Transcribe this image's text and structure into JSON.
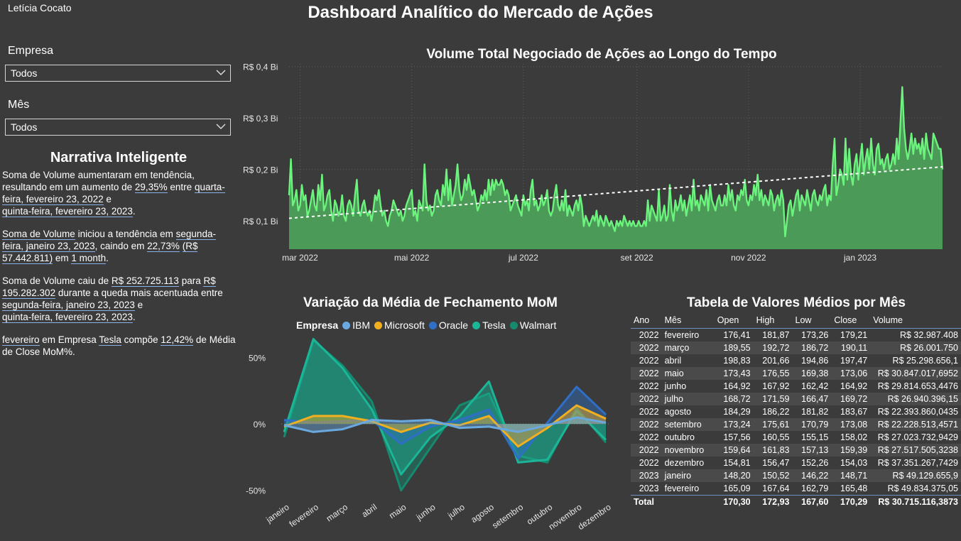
{
  "user": "Letícia Cocato",
  "title": "Dashboard Analítico do Mercado de Ações",
  "filters": {
    "empresa_label": "Empresa",
    "empresa_value": "Todos",
    "mes_label": "Mês",
    "mes_value": "Todos"
  },
  "narrative": {
    "title": "Narrativa Inteligente",
    "p1": {
      "a": "Soma de Volume aumentaram em tendência, resultando em um aumento de ",
      "b": "29,35%",
      "c": " entre ",
      "d": "quarta-feira, fevereiro 23, 2022",
      "e": " e ",
      "f": "quinta-feira, fevereiro 23, 2023",
      "g": "."
    },
    "p2": {
      "a": "Soma de Volume",
      "b": " iniciou a tendência em ",
      "c": "segunda-feira, janeiro 23, 2023",
      "d": ", caindo em ",
      "e": "22,73%",
      "f": " ",
      "g": "(R$ 57.442.811)",
      "h": " em ",
      "i": "1 month",
      "j": "."
    },
    "p3": {
      "a": "Soma de Volume caiu de ",
      "b": "R$ 252.725.113",
      "c": " para ",
      "d": "R$ 195.282.302",
      "e": " durante a queda mais acentuada entre ",
      "f": "segunda-feira, janeiro 23, 2023",
      "g": " e ",
      "h": "quinta-feira, fevereiro 23, 2023",
      "i": "."
    },
    "p4": {
      "a": "fevereiro",
      "b": " em Empresa ",
      "c": "Tesla",
      "d": " compõe ",
      "e": "12,42%",
      "f": " de Média de Close MoM%."
    }
  },
  "colors": {
    "background": "#3b3b3b",
    "volume_line": "#6cf37e",
    "volume_area": "#4c9a57",
    "trend": "#ffffff",
    "IBM": "#6aa9e0",
    "Microsoft": "#f2b01e",
    "Oracle": "#2f6fc6",
    "Tesla": "#1bb597",
    "Walmart": "#158a6e"
  },
  "chart_data": [
    {
      "type": "area",
      "title": "Volume Total Negociado de Ações ao Longo do Tempo",
      "x_range": [
        "2022-02-23",
        "2023-02-23"
      ],
      "x_ticks": [
        "mar 2022",
        "mai 2022",
        "jul 2022",
        "set 2022",
        "nov 2022",
        "jan 2023"
      ],
      "y_ticks": [
        "R$ 0,1 Bi",
        "R$ 0,2 Bi",
        "R$ 0,3 Bi",
        "R$ 0,4 Bi"
      ],
      "ylim": [
        0.045,
        0.405
      ],
      "grid": true,
      "trendline": {
        "start": 0.105,
        "end": 0.205
      },
      "series_unit": "R$ Bi",
      "values": [
        0.15,
        0.22,
        0.13,
        0.14,
        0.16,
        0.12,
        0.13,
        0.17,
        0.14,
        0.15,
        0.11,
        0.12,
        0.14,
        0.16,
        0.13,
        0.12,
        0.17,
        0.14,
        0.19,
        0.12,
        0.13,
        0.15,
        0.16,
        0.12,
        0.1,
        0.14,
        0.13,
        0.11,
        0.12,
        0.15,
        0.11,
        0.1,
        0.13,
        0.14,
        0.13,
        0.11,
        0.15,
        0.18,
        0.12,
        0.11,
        0.13,
        0.14,
        0.12,
        0.11,
        0.12,
        0.1,
        0.12,
        0.15,
        0.14,
        0.16,
        0.13,
        0.11,
        0.12,
        0.1,
        0.09,
        0.11,
        0.12,
        0.14,
        0.13,
        0.12,
        0.11,
        0.12,
        0.1,
        0.11,
        0.13,
        0.14,
        0.15,
        0.16,
        0.11,
        0.12,
        0.1,
        0.14,
        0.13,
        0.12,
        0.21,
        0.14,
        0.12,
        0.13,
        0.11,
        0.12,
        0.15,
        0.16,
        0.14,
        0.13,
        0.17,
        0.15,
        0.2,
        0.14,
        0.18,
        0.13,
        0.15,
        0.17,
        0.21,
        0.16,
        0.14,
        0.15,
        0.18,
        0.16,
        0.19,
        0.17,
        0.15,
        0.16,
        0.14,
        0.12,
        0.13,
        0.15,
        0.14,
        0.16,
        0.14,
        0.18,
        0.15,
        0.18,
        0.16,
        0.18,
        0.17,
        0.17,
        0.18,
        0.17,
        0.15,
        0.16,
        0.15,
        0.12,
        0.13,
        0.14,
        0.15,
        0.13,
        0.12,
        0.11,
        0.15,
        0.13,
        0.14,
        0.12,
        0.16,
        0.18,
        0.13,
        0.14,
        0.12,
        0.13,
        0.15,
        0.13,
        0.14,
        0.16,
        0.12,
        0.11,
        0.12,
        0.15,
        0.17,
        0.13,
        0.12,
        0.14,
        0.12,
        0.16,
        0.11,
        0.13,
        0.12,
        0.11,
        0.13,
        0.14,
        0.12,
        0.15,
        0.13,
        0.09,
        0.11,
        0.1,
        0.09,
        0.1,
        0.11,
        0.1,
        0.12,
        0.09,
        0.11,
        0.1,
        0.09,
        0.11,
        0.1,
        0.09,
        0.1,
        0.09,
        0.08,
        0.1,
        0.09,
        0.1,
        0.09,
        0.11,
        0.1,
        0.09,
        0.1,
        0.09,
        0.1,
        0.09,
        0.09,
        0.1,
        0.09,
        0.09,
        0.1,
        0.09,
        0.14,
        0.1,
        0.13,
        0.12,
        0.11,
        0.1,
        0.16,
        0.1,
        0.11,
        0.13,
        0.1,
        0.11,
        0.17,
        0.12,
        0.1,
        0.14,
        0.12,
        0.13,
        0.15,
        0.12,
        0.14,
        0.11,
        0.13,
        0.15,
        0.12,
        0.18,
        0.13,
        0.14,
        0.12,
        0.15,
        0.14,
        0.13,
        0.16,
        0.12,
        0.17,
        0.14,
        0.13,
        0.12,
        0.14,
        0.15,
        0.13,
        0.13,
        0.15,
        0.13,
        0.17,
        0.14,
        0.16,
        0.13,
        0.12,
        0.15,
        0.14,
        0.16,
        0.15,
        0.18,
        0.14,
        0.13,
        0.15,
        0.14,
        0.17,
        0.15,
        0.19,
        0.14,
        0.16,
        0.13,
        0.15,
        0.14,
        0.13,
        0.16,
        0.15,
        0.12,
        0.14,
        0.15,
        0.13,
        0.16,
        0.14,
        0.07,
        0.1,
        0.13,
        0.14,
        0.11,
        0.13,
        0.15,
        0.16,
        0.12,
        0.15,
        0.14,
        0.13,
        0.16,
        0.14,
        0.12,
        0.15,
        0.16,
        0.14,
        0.13,
        0.15,
        0.14,
        0.16,
        0.17,
        0.13,
        0.15,
        0.14,
        0.21,
        0.26,
        0.15,
        0.17,
        0.2,
        0.19,
        0.17,
        0.26,
        0.18,
        0.24,
        0.19,
        0.17,
        0.21,
        0.23,
        0.18,
        0.22,
        0.25,
        0.19,
        0.22,
        0.24,
        0.2,
        0.26,
        0.21,
        0.19,
        0.24,
        0.25,
        0.21,
        0.22,
        0.2,
        0.22,
        0.23,
        0.2,
        0.21,
        0.23,
        0.21,
        0.26,
        0.22,
        0.29,
        0.36,
        0.28,
        0.24,
        0.22,
        0.24,
        0.27,
        0.23,
        0.26,
        0.24,
        0.25,
        0.23,
        0.26,
        0.22,
        0.27,
        0.24,
        0.23,
        0.22,
        0.27,
        0.26,
        0.25,
        0.24,
        0.24,
        0.2
      ]
    },
    {
      "type": "area",
      "title": "Variação da Média de Fechamento MoM",
      "legend_title": "Empresa",
      "legend_position": "top",
      "categories": [
        "janeiro",
        "fevereiro",
        "março",
        "abril",
        "maio",
        "junho",
        "julho",
        "agosto",
        "setembro",
        "outubro",
        "novembro",
        "dezembro"
      ],
      "y_ticks": [
        "-50%",
        "0%",
        "50%"
      ],
      "ylim": [
        -0.55,
        0.68
      ],
      "series": [
        {
          "name": "IBM",
          "values": [
            -0.01,
            -0.06,
            -0.04,
            0.03,
            0.02,
            0.03,
            -0.03,
            -0.02,
            -0.06,
            -0.01,
            0.05,
            0.01
          ]
        },
        {
          "name": "Microsoft",
          "values": [
            -0.02,
            0.06,
            0.06,
            0.02,
            -0.06,
            0.01,
            -0.01,
            0.06,
            -0.17,
            -0.03,
            0.14,
            0.04
          ]
        },
        {
          "name": "Oracle",
          "values": [
            0.03,
            0.01,
            0.02,
            0.03,
            -0.15,
            -0.02,
            0.03,
            0.11,
            -0.26,
            0.01,
            0.28,
            0.07
          ]
        },
        {
          "name": "Tesla",
          "values": [
            -0.06,
            0.64,
            0.42,
            0.11,
            -0.38,
            -0.1,
            0.06,
            0.32,
            -0.29,
            -0.27,
            0.1,
            -0.12
          ]
        },
        {
          "name": "Walmart",
          "values": [
            -0.1,
            0.63,
            0.44,
            0.17,
            -0.5,
            -0.18,
            0.14,
            0.23,
            -0.24,
            -0.29,
            0.12,
            -0.14
          ]
        }
      ]
    },
    {
      "type": "table",
      "title": "Tabela de Valores Médios por Mês",
      "columns": [
        "Ano",
        "Mês",
        "Open",
        "High",
        "Low",
        "Close",
        "Volume"
      ],
      "rows": [
        [
          "2022",
          "fevereiro",
          "176,41",
          "181,87",
          "173,26",
          "179,21",
          "R$ 32.987.408"
        ],
        [
          "2022",
          "março",
          "189,55",
          "192,72",
          "186,72",
          "190,11",
          "R$ 26.001.750"
        ],
        [
          "2022",
          "abril",
          "198,83",
          "201,66",
          "194,86",
          "197,47",
          "R$ 25.298.656,1"
        ],
        [
          "2022",
          "maio",
          "173,43",
          "176,55",
          "169,38",
          "173,06",
          "R$ 30.847.017,6952"
        ],
        [
          "2022",
          "junho",
          "164,92",
          "167,92",
          "162,42",
          "164,92",
          "R$ 29.814.653,4476"
        ],
        [
          "2022",
          "julho",
          "168,72",
          "171,59",
          "166,47",
          "169,72",
          "R$ 26.940.396,15"
        ],
        [
          "2022",
          "agosto",
          "184,29",
          "186,22",
          "181,82",
          "183,67",
          "R$ 22.393.860,0435"
        ],
        [
          "2022",
          "setembro",
          "173,24",
          "175,61",
          "170,79",
          "173,08",
          "R$ 22.228.513,4571"
        ],
        [
          "2022",
          "outubro",
          "157,56",
          "160,55",
          "155,15",
          "158,02",
          "R$ 27.023.732,9429"
        ],
        [
          "2022",
          "novembro",
          "159,64",
          "161,83",
          "157,13",
          "159,39",
          "R$ 27.517.505,3238"
        ],
        [
          "2022",
          "dezembro",
          "154,81",
          "156,47",
          "152,26",
          "154,03",
          "R$ 37.351.267,7429"
        ],
        [
          "2023",
          "janeiro",
          "148,20",
          "150,52",
          "146,22",
          "148,71",
          "R$ 49.129.655,9"
        ],
        [
          "2023",
          "fevereiro",
          "165,09",
          "167,64",
          "162,79",
          "165,48",
          "R$ 49.834.375,05"
        ]
      ],
      "total": [
        "Total",
        "",
        "170,30",
        "172,93",
        "167,60",
        "170,29",
        "R$ 30.715.116,3873"
      ]
    }
  ]
}
